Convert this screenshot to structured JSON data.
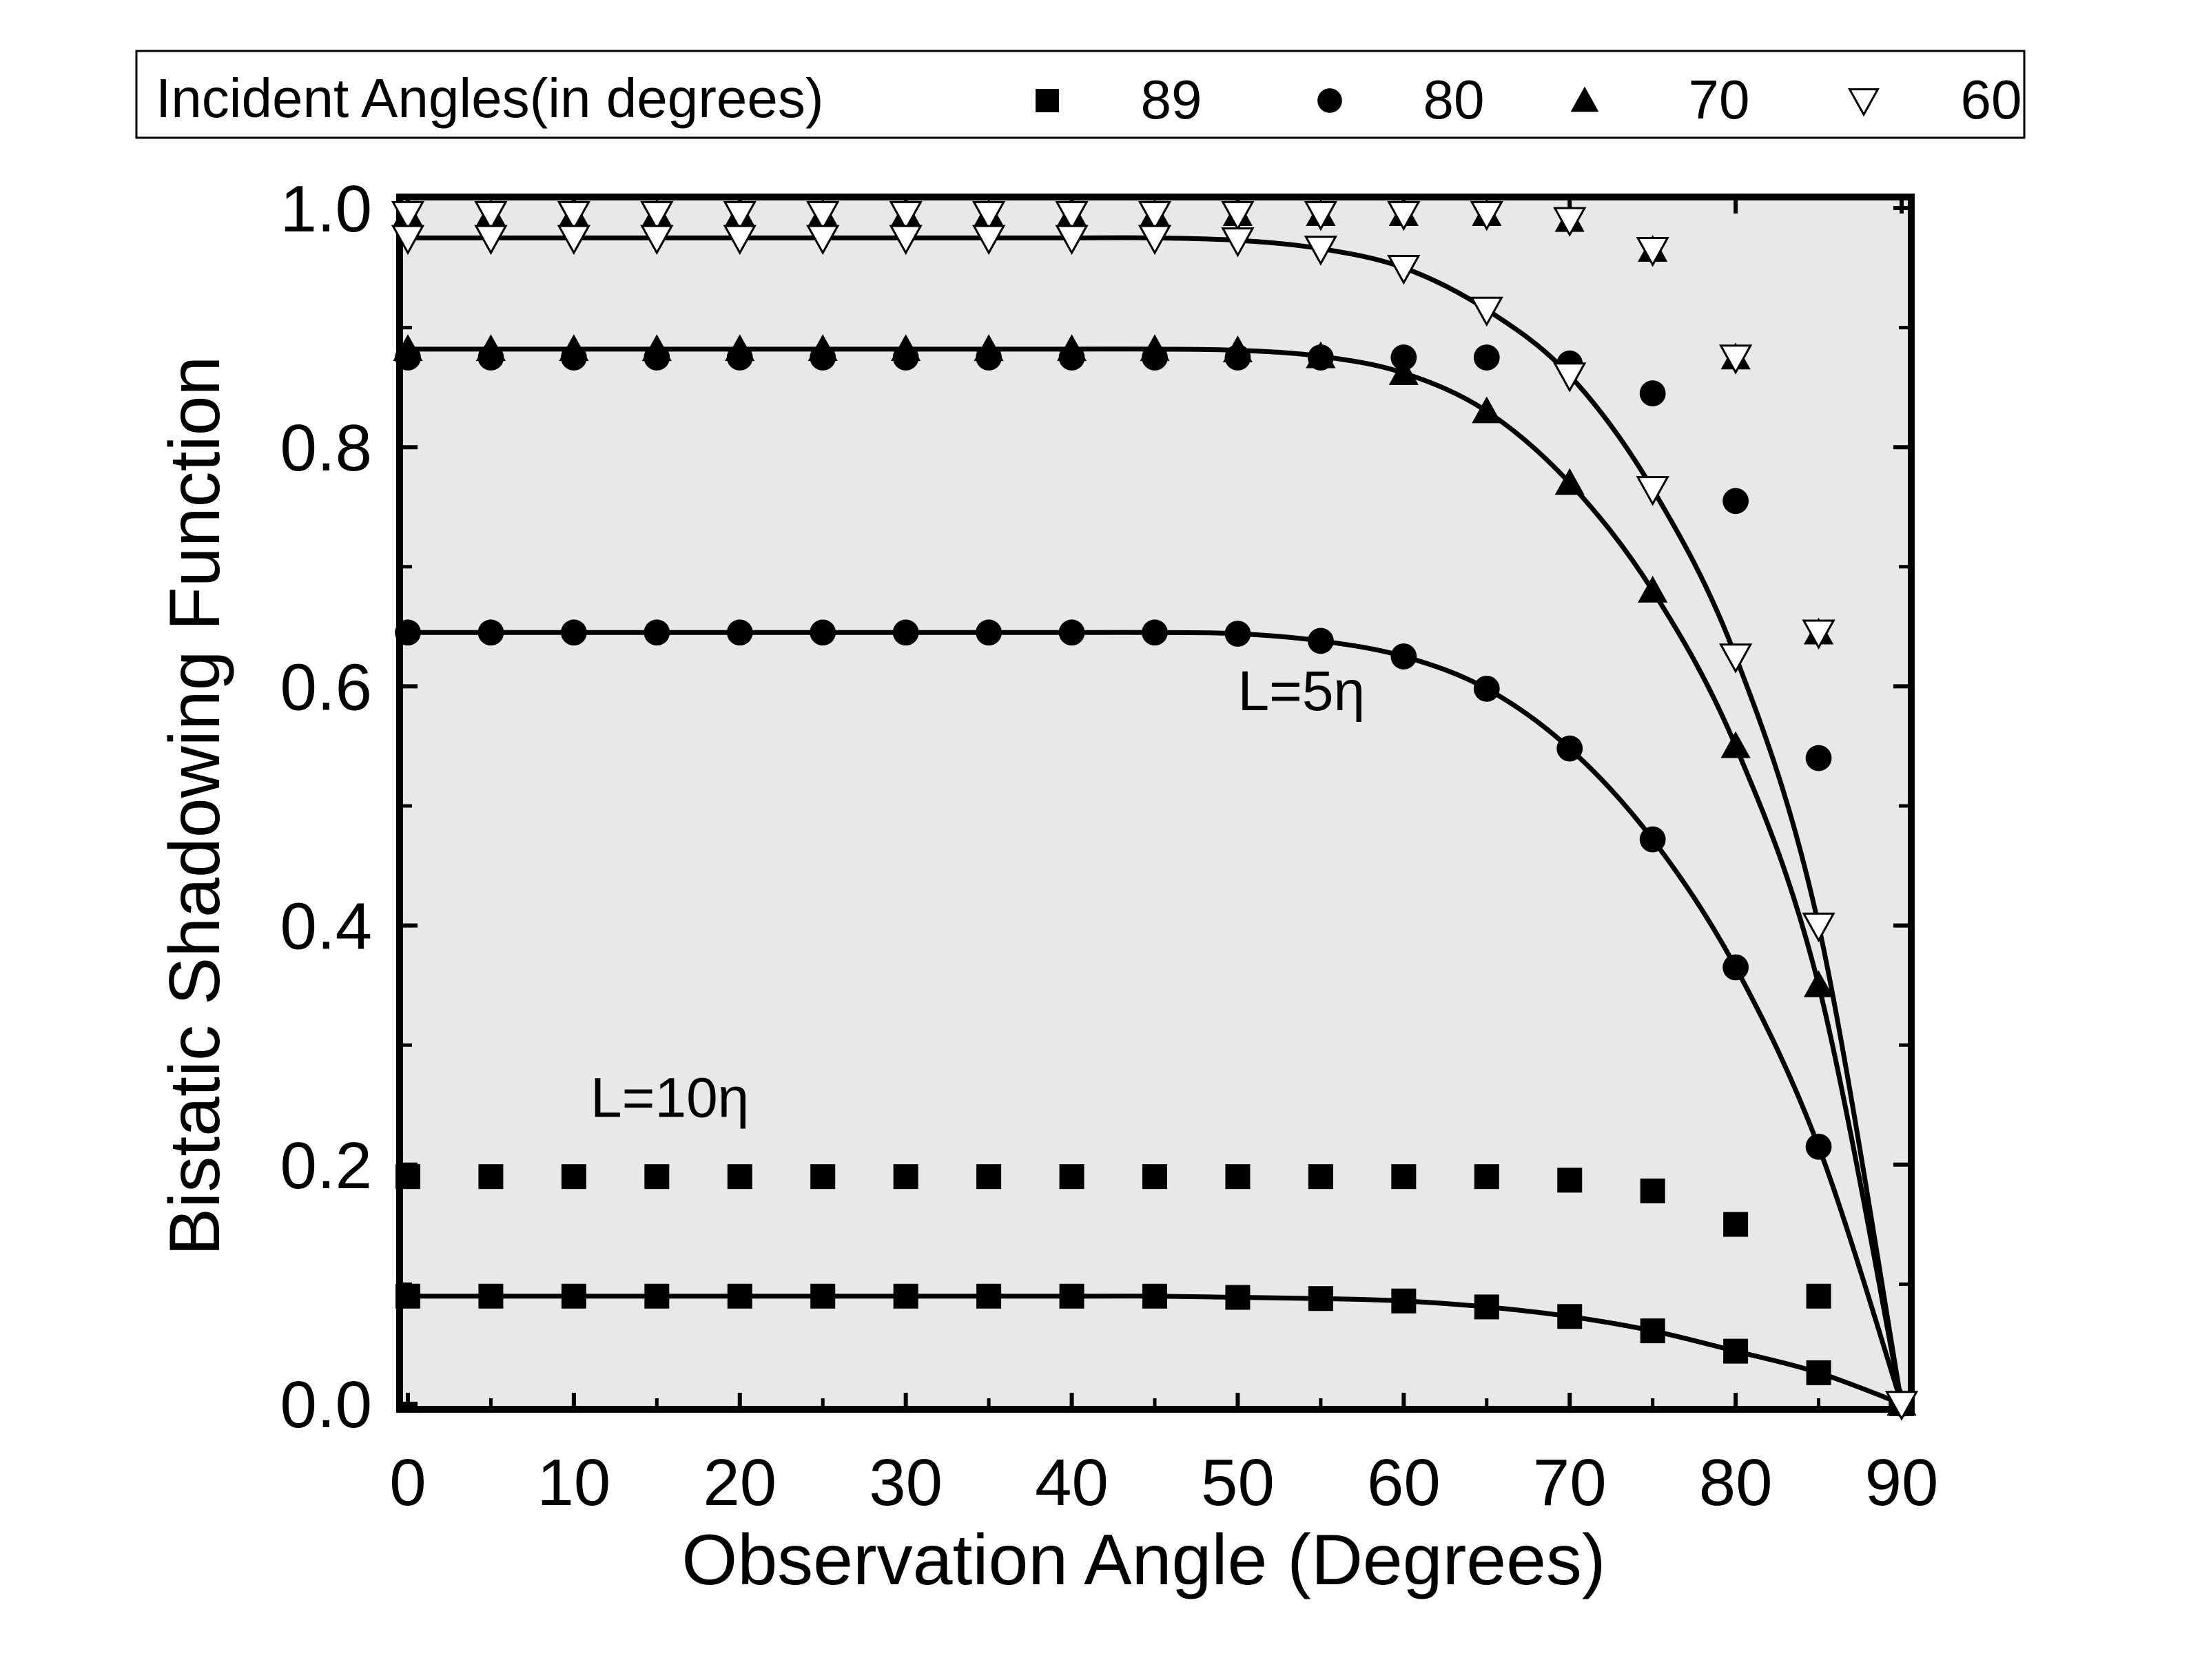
{
  "legend": {
    "title": "Incident Angles(in degrees)",
    "entries": [
      {
        "marker": "square",
        "label": "89"
      },
      {
        "marker": "circle",
        "label": "80"
      },
      {
        "marker": "triangle-up",
        "label": "70"
      },
      {
        "marker": "triangle-down-open",
        "label": "60"
      }
    ]
  },
  "annotations": {
    "l5": "L=5η",
    "l10": "L=10η"
  },
  "chart_data": {
    "type": "scatter",
    "title": "",
    "xlabel": "Observation Angle (Degrees)",
    "ylabel": "Bistatic Shadowing Function",
    "xlim": [
      0,
      90
    ],
    "ylim": [
      0,
      1
    ],
    "xticks": [
      "0",
      "10",
      "20",
      "30",
      "40",
      "50",
      "60",
      "70",
      "80",
      "90"
    ],
    "yticks": [
      "0.0",
      "0.2",
      "0.4",
      "0.6",
      "0.8",
      "1.0"
    ],
    "grid": false,
    "legend_position": "top",
    "colors": {
      "plot_bg": "#e8e8e8",
      "ink": "#000000",
      "open_marker_fill": "#ffffff"
    },
    "x": [
      0,
      5,
      10,
      15,
      20,
      25,
      30,
      35,
      40,
      45,
      50,
      55,
      60,
      65,
      70,
      75,
      80,
      85,
      90
    ],
    "annotation_positions": [
      {
        "text_key": "l5",
        "x": 50,
        "y": 0.58
      },
      {
        "text_key": "l10",
        "x": 11,
        "y": 0.24
      }
    ],
    "series": [
      {
        "name": "89",
        "group": "L=10η",
        "marker": "square",
        "values": [
          0.19,
          0.19,
          0.19,
          0.19,
          0.19,
          0.19,
          0.19,
          0.19,
          0.19,
          0.19,
          0.19,
          0.19,
          0.19,
          0.19,
          0.187,
          0.178,
          0.15,
          0.09,
          null
        ]
      },
      {
        "name": "89",
        "group": "L=5η",
        "marker": "square",
        "line": true,
        "values": [
          0.09,
          0.09,
          0.09,
          0.09,
          0.09,
          0.09,
          0.09,
          0.09,
          0.09,
          0.09,
          0.089,
          0.088,
          0.086,
          0.081,
          0.073,
          0.061,
          0.044,
          0.026,
          0.0
        ]
      },
      {
        "name": "80",
        "group": "L=10η",
        "marker": "circle",
        "values": [
          0.875,
          0.875,
          0.875,
          0.875,
          0.875,
          0.875,
          0.875,
          0.875,
          0.875,
          0.875,
          0.875,
          0.875,
          0.875,
          0.875,
          0.87,
          0.845,
          0.755,
          0.54,
          null
        ]
      },
      {
        "name": "80",
        "group": "L=5η",
        "marker": "circle",
        "line": true,
        "values": [
          0.645,
          0.645,
          0.645,
          0.645,
          0.645,
          0.645,
          0.645,
          0.645,
          0.645,
          0.645,
          0.644,
          0.638,
          0.625,
          0.598,
          0.548,
          0.472,
          0.365,
          0.215,
          0.0
        ]
      },
      {
        "name": "70",
        "group": "L=10η",
        "marker": "triangle-up",
        "values": [
          0.995,
          0.995,
          0.995,
          0.995,
          0.995,
          0.995,
          0.995,
          0.995,
          0.995,
          0.995,
          0.995,
          0.995,
          0.995,
          0.995,
          0.99,
          0.965,
          0.875,
          0.645,
          null
        ]
      },
      {
        "name": "70",
        "group": "L=5η",
        "marker": "triangle-up",
        "line": true,
        "values": [
          0.882,
          0.882,
          0.882,
          0.882,
          0.882,
          0.882,
          0.882,
          0.882,
          0.882,
          0.882,
          0.881,
          0.876,
          0.862,
          0.83,
          0.77,
          0.68,
          0.55,
          0.35,
          0.0
        ]
      },
      {
        "name": "60",
        "group": "L=10η",
        "marker": "triangle-down-open",
        "values": [
          0.995,
          0.995,
          0.995,
          0.995,
          0.995,
          0.995,
          0.995,
          0.995,
          0.995,
          0.995,
          0.995,
          0.995,
          0.995,
          0.995,
          0.99,
          0.965,
          0.875,
          0.645,
          null
        ]
      },
      {
        "name": "60",
        "group": "L=5η",
        "marker": "triangle-down-open",
        "line": true,
        "values": [
          0.975,
          0.975,
          0.975,
          0.975,
          0.975,
          0.975,
          0.975,
          0.975,
          0.975,
          0.975,
          0.973,
          0.966,
          0.95,
          0.915,
          0.86,
          0.765,
          0.625,
          0.4,
          0.0
        ]
      }
    ]
  }
}
